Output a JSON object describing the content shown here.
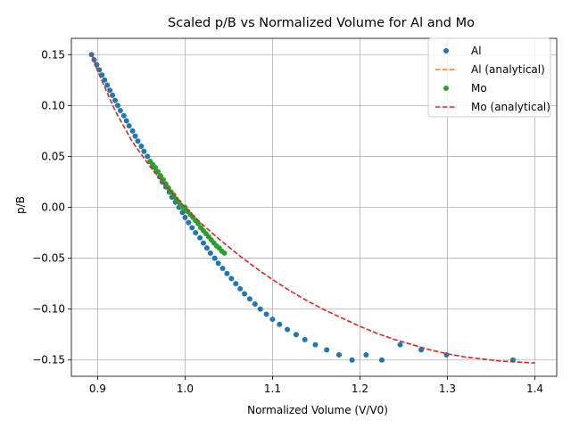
{
  "chart_data": {
    "type": "scatter",
    "title": "Scaled p/B vs Normalized Volume for Al and Mo",
    "xlabel": "Normalized Volume (V/V0)",
    "ylabel": "p/B",
    "xlim": [
      0.87,
      1.425
    ],
    "ylim": [
      -0.166,
      0.166
    ],
    "xticks": [
      0.9,
      1.0,
      1.1,
      1.2,
      1.3,
      1.4
    ],
    "xtick_labels": [
      "0.9",
      "1.0",
      "1.1",
      "1.2",
      "1.3",
      "1.4"
    ],
    "yticks": [
      -0.15,
      -0.1,
      -0.05,
      0.0,
      0.05,
      0.1,
      0.15
    ],
    "ytick_labels": [
      "−0.15",
      "−0.10",
      "−0.05",
      "0.00",
      "0.05",
      "0.10",
      "0.15"
    ],
    "grid": true,
    "legend_position": "top-right",
    "colors": {
      "al_points": "#1f77b4",
      "al_analytical": "#ff7f0e",
      "mo_points": "#2ca02c",
      "mo_analytical": "#d62728",
      "grid": "#b0b0b0",
      "axes": "#000000"
    },
    "series": [
      {
        "name": "Al",
        "kind": "points",
        "x": [
          0.893,
          0.896,
          0.899,
          0.902,
          0.905,
          0.908,
          0.911,
          0.914,
          0.917,
          0.92,
          0.923,
          0.926,
          0.93,
          0.933,
          0.936,
          0.94,
          0.943,
          0.946,
          0.95,
          0.953,
          0.957,
          0.96,
          0.964,
          0.967,
          0.971,
          0.974,
          0.978,
          0.982,
          0.985,
          0.989,
          0.993,
          0.997,
          1.0,
          1.004,
          1.008,
          1.012,
          1.017,
          1.021,
          1.025,
          1.029,
          1.034,
          1.038,
          1.043,
          1.048,
          1.053,
          1.058,
          1.063,
          1.068,
          1.074,
          1.08,
          1.086,
          1.093,
          1.1,
          1.108,
          1.117,
          1.127,
          1.137,
          1.149,
          1.162,
          1.176,
          1.191,
          1.207,
          1.225,
          1.246,
          1.27,
          1.299,
          1.375
        ],
        "y": [
          0.15,
          0.145,
          0.14,
          0.135,
          0.13,
          0.125,
          0.12,
          0.115,
          0.11,
          0.105,
          0.1,
          0.095,
          0.09,
          0.085,
          0.08,
          0.075,
          0.07,
          0.065,
          0.06,
          0.055,
          0.05,
          0.045,
          0.04,
          0.035,
          0.03,
          0.025,
          0.02,
          0.015,
          0.01,
          0.005,
          0.0,
          -0.005,
          -0.01,
          -0.015,
          -0.02,
          -0.025,
          -0.03,
          -0.035,
          -0.04,
          -0.045,
          -0.05,
          -0.055,
          -0.06,
          -0.065,
          -0.07,
          -0.075,
          -0.08,
          -0.085,
          -0.09,
          -0.095,
          -0.1,
          -0.105,
          -0.11,
          -0.115,
          -0.12,
          -0.125,
          -0.13,
          -0.135,
          -0.14,
          -0.145,
          -0.15,
          -0.145,
          -0.15,
          -0.135,
          -0.14,
          -0.145,
          -0.15
        ]
      },
      {
        "name": "Al (analytical)",
        "kind": "line",
        "style": "dashed",
        "x": [
          0.893,
          0.9,
          0.92,
          0.94,
          0.96,
          0.98,
          1.0,
          1.02,
          1.04,
          1.06,
          1.08,
          1.1,
          1.12,
          1.14,
          1.16,
          1.18,
          1.2,
          1.22,
          1.24,
          1.26,
          1.28,
          1.3,
          1.32,
          1.34,
          1.36,
          1.38,
          1.4
        ],
        "y": [
          0.151,
          0.134,
          0.095,
          0.064,
          0.04,
          0.019,
          0.0,
          -0.017,
          -0.032,
          -0.046,
          -0.059,
          -0.071,
          -0.082,
          -0.092,
          -0.101,
          -0.109,
          -0.117,
          -0.124,
          -0.13,
          -0.135,
          -0.14,
          -0.144,
          -0.147,
          -0.149,
          -0.151,
          -0.152,
          -0.153
        ]
      },
      {
        "name": "Mo",
        "kind": "points",
        "x": [
          0.96,
          0.963,
          0.966,
          0.969,
          0.972,
          0.975,
          0.978,
          0.981,
          0.984,
          0.987,
          0.99,
          0.993,
          0.996,
          0.999,
          1.0,
          1.003,
          1.006,
          1.009,
          1.012,
          1.015,
          1.018,
          1.021,
          1.024,
          1.027,
          1.03,
          1.033,
          1.036,
          1.039,
          1.042,
          1.045
        ],
        "y": [
          0.045,
          0.042,
          0.039,
          0.035,
          0.031,
          0.027,
          0.023,
          0.019,
          0.015,
          0.012,
          0.008,
          0.005,
          0.001,
          -0.002,
          0.0,
          -0.004,
          -0.007,
          -0.01,
          -0.013,
          -0.016,
          -0.02,
          -0.023,
          -0.026,
          -0.029,
          -0.032,
          -0.035,
          -0.038,
          -0.04,
          -0.043,
          -0.045
        ]
      },
      {
        "name": "Mo (analytical)",
        "kind": "line",
        "style": "dashed",
        "x": [
          0.893,
          0.9,
          0.92,
          0.94,
          0.96,
          0.98,
          1.0,
          1.02,
          1.04,
          1.06,
          1.08,
          1.1,
          1.12,
          1.14,
          1.16,
          1.18,
          1.2,
          1.22,
          1.24,
          1.26,
          1.28,
          1.3,
          1.32,
          1.34,
          1.36,
          1.38,
          1.4
        ],
        "y": [
          0.151,
          0.134,
          0.095,
          0.064,
          0.04,
          0.019,
          0.0,
          -0.017,
          -0.032,
          -0.046,
          -0.059,
          -0.071,
          -0.082,
          -0.092,
          -0.101,
          -0.109,
          -0.117,
          -0.124,
          -0.13,
          -0.135,
          -0.14,
          -0.144,
          -0.147,
          -0.149,
          -0.151,
          -0.152,
          -0.153
        ]
      }
    ]
  }
}
